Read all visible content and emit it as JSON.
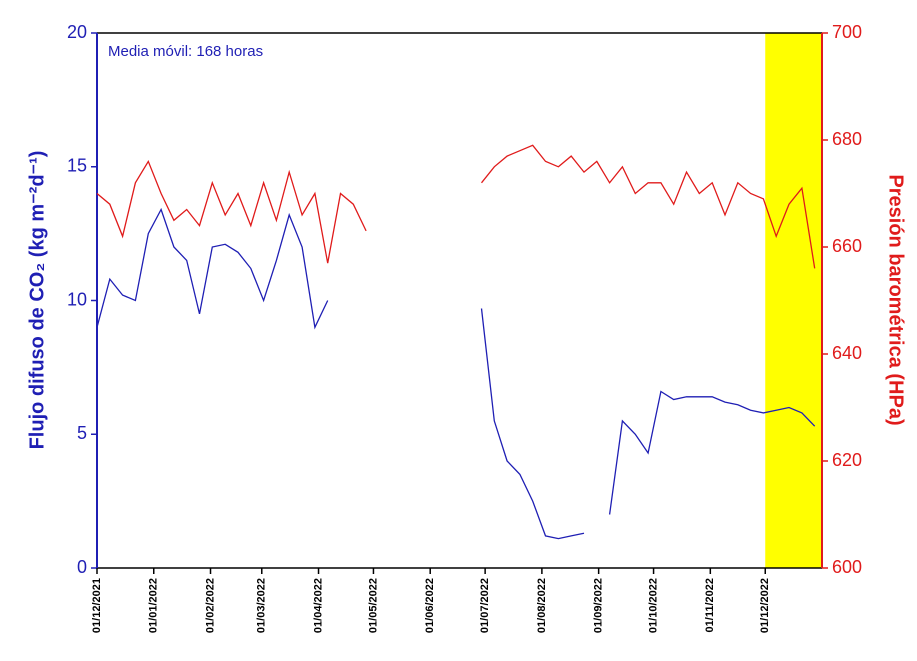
{
  "chart_data": {
    "type": "line",
    "annotation": "Media móvil: 168 horas",
    "ylabel": "Flujo difuso de CO₂ (kg m⁻²d⁻¹)",
    "y2label": "Presión barométrica (HPa)",
    "x": [
      "2021-12-01",
      "2021-12-08",
      "2021-12-15",
      "2021-12-22",
      "2021-12-29",
      "2022-01-05",
      "2022-01-12",
      "2022-01-19",
      "2022-01-26",
      "2022-02-02",
      "2022-02-09",
      "2022-02-16",
      "2022-02-23",
      "2022-03-02",
      "2022-03-09",
      "2022-03-16",
      "2022-03-23",
      "2022-03-30",
      "2022-04-06",
      "2022-04-13",
      "2022-04-20",
      "2022-04-27",
      "2022-05-04",
      "2022-05-11",
      "2022-05-18",
      "2022-05-25",
      "2022-06-01",
      "2022-06-08",
      "2022-06-15",
      "2022-06-22",
      "2022-06-29",
      "2022-07-06",
      "2022-07-13",
      "2022-07-20",
      "2022-07-27",
      "2022-08-03",
      "2022-08-10",
      "2022-08-17",
      "2022-08-24",
      "2022-08-31",
      "2022-09-07",
      "2022-09-14",
      "2022-09-21",
      "2022-09-28",
      "2022-10-05",
      "2022-10-12",
      "2022-10-19",
      "2022-10-26",
      "2022-11-02",
      "2022-11-09",
      "2022-11-16",
      "2022-11-23",
      "2022-11-30",
      "2022-12-07",
      "2022-12-14",
      "2022-12-21",
      "2022-12-28"
    ],
    "series": [
      {
        "name": "Flujo difuso de CO₂",
        "color": "#1f1fb4",
        "axis": "y",
        "values": [
          9.0,
          10.8,
          10.2,
          10.0,
          12.5,
          13.4,
          12.0,
          11.5,
          9.5,
          12.0,
          12.1,
          11.8,
          11.2,
          10.0,
          11.5,
          13.2,
          12.0,
          9.0,
          10.0,
          null,
          null,
          null,
          null,
          null,
          null,
          null,
          null,
          null,
          null,
          null,
          9.7,
          5.5,
          4.0,
          3.5,
          2.5,
          1.2,
          1.1,
          1.2,
          1.3,
          null,
          2.0,
          5.5,
          5.0,
          4.3,
          6.6,
          6.3,
          6.4,
          6.4,
          6.4,
          6.2,
          6.1,
          5.9,
          5.8,
          5.9,
          6.0,
          5.8,
          5.3
        ]
      },
      {
        "name": "Presión barométrica",
        "color": "#e01b1b",
        "axis": "y2",
        "values": [
          670,
          668,
          662,
          672,
          676,
          670,
          665,
          667,
          664,
          672,
          666,
          670,
          664,
          672,
          665,
          674,
          666,
          670,
          657,
          670,
          668,
          663,
          null,
          null,
          null,
          null,
          null,
          null,
          null,
          null,
          672,
          675,
          677,
          678,
          679,
          676,
          675,
          677,
          674,
          676,
          672,
          675,
          670,
          672,
          672,
          668,
          674,
          670,
          672,
          666,
          672,
          670,
          669,
          662,
          668,
          671,
          656
        ]
      }
    ],
    "xlim": [
      "2021-12-01",
      "2023-01-01"
    ],
    "xticks": [
      {
        "value": "2021-12-01",
        "label": "01/12/2021"
      },
      {
        "value": "2022-01-01",
        "label": "01/01/2022"
      },
      {
        "value": "2022-02-01",
        "label": "01/02/2022"
      },
      {
        "value": "2022-03-01",
        "label": "01/03/2022"
      },
      {
        "value": "2022-04-01",
        "label": "01/04/2022"
      },
      {
        "value": "2022-05-01",
        "label": "01/05/2022"
      },
      {
        "value": "2022-06-01",
        "label": "01/06/2022"
      },
      {
        "value": "2022-07-01",
        "label": "01/07/2022"
      },
      {
        "value": "2022-08-01",
        "label": "01/08/2022"
      },
      {
        "value": "2022-09-01",
        "label": "01/09/2022"
      },
      {
        "value": "2022-10-01",
        "label": "01/10/2022"
      },
      {
        "value": "2022-11-01",
        "label": "01/11/2022"
      },
      {
        "value": "2022-12-01",
        "label": "01/12/2022"
      }
    ],
    "ylim": [
      0,
      20
    ],
    "yticks": [
      0,
      5,
      10,
      15,
      20
    ],
    "y2lim": [
      600,
      700
    ],
    "y2ticks": [
      600,
      620,
      640,
      660,
      680,
      700
    ],
    "highlight": {
      "start": "2022-12-01",
      "end": "2023-01-01",
      "color": "#ffff00"
    }
  }
}
